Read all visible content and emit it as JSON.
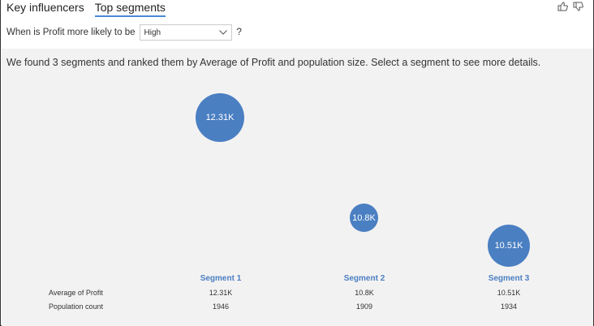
{
  "tabs": [
    {
      "label": "Key influencers"
    },
    {
      "label": "Top segments",
      "active": true
    }
  ],
  "feedback": {
    "like_icon": "thumbs-up-icon",
    "dislike_icon": "thumbs-down-icon"
  },
  "filter": {
    "label": "When is Profit more likely to be",
    "value": "High",
    "suffix": "?"
  },
  "summary": "We found 3 segments and ranked them by Average of Profit and population size. Select a segment to see more details.",
  "accent": "#4a7fc2",
  "row_labels": [
    "Average of Profit",
    "Population count"
  ],
  "segments": [
    {
      "name": "Segment 1",
      "bubble_label": "12.31K",
      "avg_profit": "12.31K",
      "population": "1946"
    },
    {
      "name": "Segment 2",
      "bubble_label": "10.8K",
      "avg_profit": "10.8K",
      "population": "1909"
    },
    {
      "name": "Segment 3",
      "bubble_label": "10.51K",
      "avg_profit": "10.51K",
      "population": "1934"
    }
  ]
}
